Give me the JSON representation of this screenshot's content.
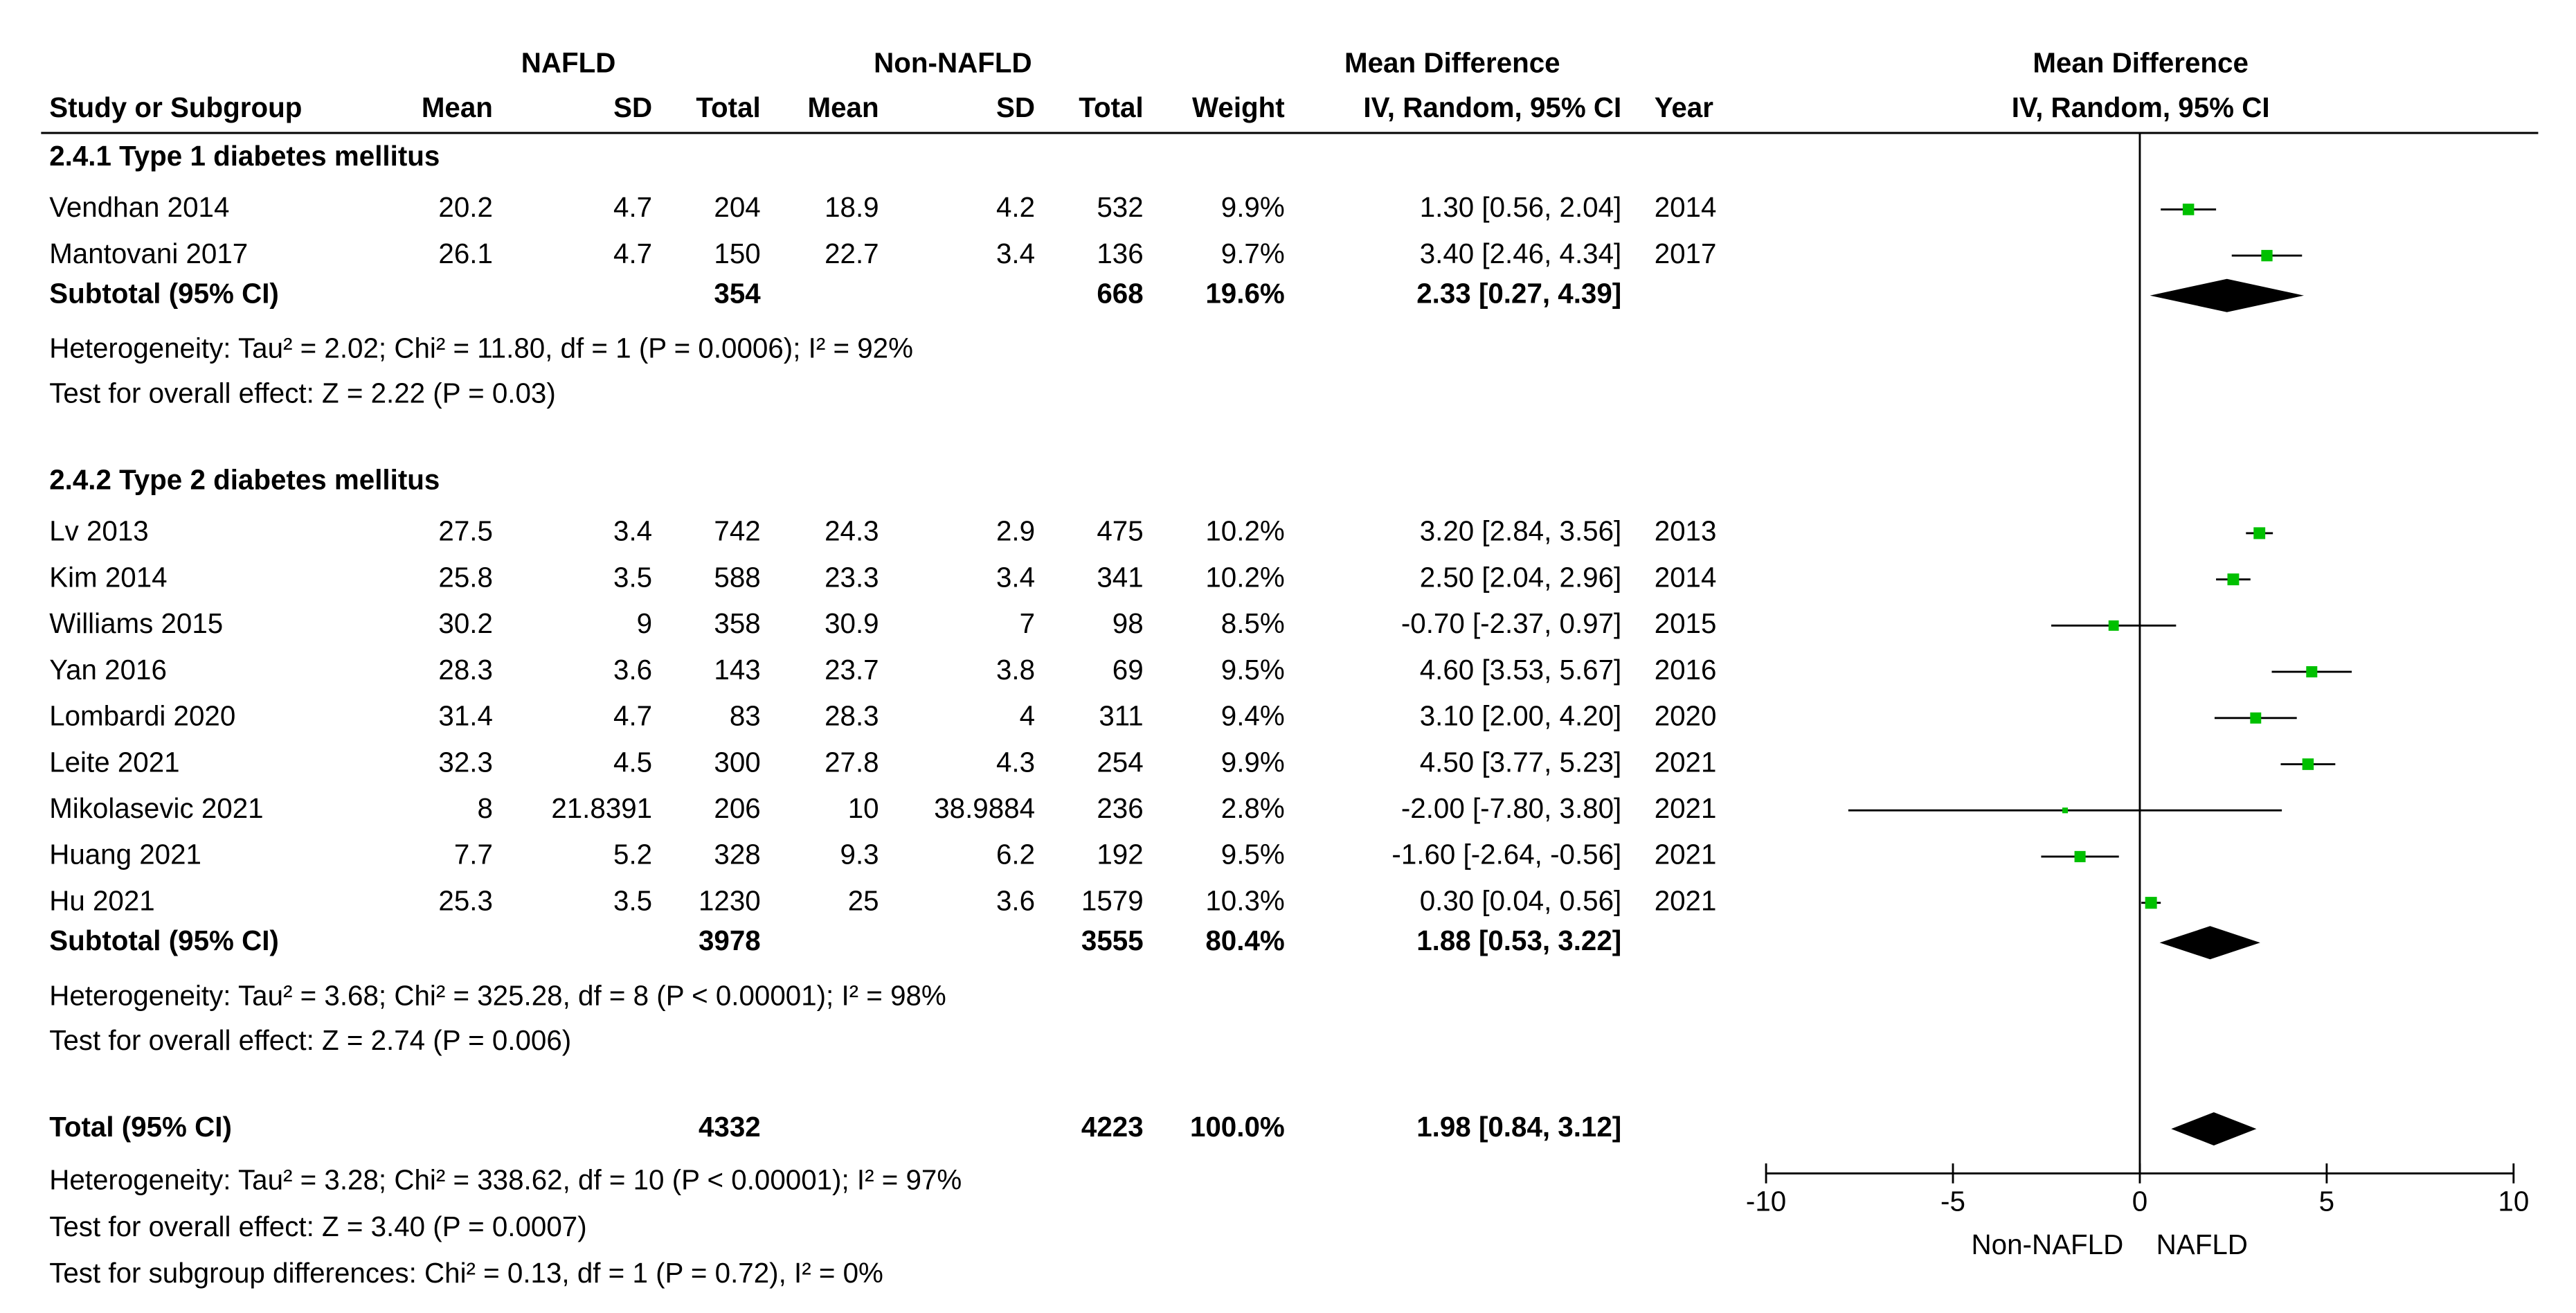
{
  "chart_data": {
    "type": "forest",
    "group_headers": [
      "NAFLD",
      "Non-NAFLD",
      "Mean Difference",
      "Mean Difference"
    ],
    "columns": [
      "Study or Subgroup",
      "Mean",
      "SD",
      "Total",
      "Mean",
      "SD",
      "Total",
      "Weight",
      "IV, Random, 95% CI",
      "Year",
      "IV, Random, 95% CI"
    ],
    "subgroups": [
      {
        "title": "2.4.1 Type 1 diabetes mellitus",
        "studies": [
          {
            "name": "Vendhan 2014",
            "mean1": 20.2,
            "sd1": 4.7,
            "n1": 204,
            "mean2": 18.9,
            "sd2": 4.2,
            "n2": 532,
            "weight": {
              "value": 9.9,
              "label": "9.9%"
            },
            "md": {
              "value": 1.3,
              "lower": 0.56,
              "upper": 2.04,
              "label": "1.30 [0.56, 2.04]"
            },
            "year": 2014
          },
          {
            "name": "Mantovani 2017",
            "mean1": 26.1,
            "sd1": 4.7,
            "n1": 150,
            "mean2": 22.7,
            "sd2": 3.4,
            "n2": 136,
            "weight": {
              "value": 9.7,
              "label": "9.7%"
            },
            "md": {
              "value": 3.4,
              "lower": 2.46,
              "upper": 4.34,
              "label": "3.40 [2.46, 4.34]"
            },
            "year": 2017
          }
        ],
        "subtotal": {
          "label": "Subtotal (95% CI)",
          "n1": 354,
          "n2": 668,
          "weight": {
            "value": 19.6,
            "label": "19.6%"
          },
          "md": {
            "value": 2.33,
            "lower": 0.27,
            "upper": 4.39,
            "label": "2.33 [0.27, 4.39]"
          }
        },
        "heterogeneity": "Heterogeneity: Tau² = 2.02; Chi² = 11.80, df = 1 (P = 0.0006); I² = 92%",
        "overall_effect": "Test for overall effect: Z = 2.22 (P = 0.03)"
      },
      {
        "title": "2.4.2 Type 2 diabetes mellitus",
        "studies": [
          {
            "name": "Lv 2013",
            "mean1": 27.5,
            "sd1": 3.4,
            "n1": 742,
            "mean2": 24.3,
            "sd2": 2.9,
            "n2": 475,
            "weight": {
              "value": 10.2,
              "label": "10.2%"
            },
            "md": {
              "value": 3.2,
              "lower": 2.84,
              "upper": 3.56,
              "label": "3.20 [2.84, 3.56]"
            },
            "year": 2013
          },
          {
            "name": "Kim 2014",
            "mean1": 25.8,
            "sd1": 3.5,
            "n1": 588,
            "mean2": 23.3,
            "sd2": 3.4,
            "n2": 341,
            "weight": {
              "value": 10.2,
              "label": "10.2%"
            },
            "md": {
              "value": 2.5,
              "lower": 2.04,
              "upper": 2.96,
              "label": "2.50 [2.04, 2.96]"
            },
            "year": 2014
          },
          {
            "name": "Williams 2015",
            "mean1": 30.2,
            "sd1": 9,
            "n1": 358,
            "mean2": 30.9,
            "sd2": 7,
            "n2": 98,
            "weight": {
              "value": 8.5,
              "label": "8.5%"
            },
            "md": {
              "value": -0.7,
              "lower": -2.37,
              "upper": 0.97,
              "label": "-0.70 [-2.37, 0.97]"
            },
            "year": 2015
          },
          {
            "name": "Yan 2016",
            "mean1": 28.3,
            "sd1": 3.6,
            "n1": 143,
            "mean2": 23.7,
            "sd2": 3.8,
            "n2": 69,
            "weight": {
              "value": 9.5,
              "label": "9.5%"
            },
            "md": {
              "value": 4.6,
              "lower": 3.53,
              "upper": 5.67,
              "label": "4.60 [3.53, 5.67]"
            },
            "year": 2016
          },
          {
            "name": "Lombardi 2020",
            "mean1": 31.4,
            "sd1": 4.7,
            "n1": 83,
            "mean2": 28.3,
            "sd2": 4,
            "n2": 311,
            "weight": {
              "value": 9.4,
              "label": "9.4%"
            },
            "md": {
              "value": 3.1,
              "lower": 2.0,
              "upper": 4.2,
              "label": "3.10 [2.00, 4.20]"
            },
            "year": 2020
          },
          {
            "name": "Leite 2021",
            "mean1": 32.3,
            "sd1": 4.5,
            "n1": 300,
            "mean2": 27.8,
            "sd2": 4.3,
            "n2": 254,
            "weight": {
              "value": 9.9,
              "label": "9.9%"
            },
            "md": {
              "value": 4.5,
              "lower": 3.77,
              "upper": 5.23,
              "label": "4.50 [3.77, 5.23]"
            },
            "year": 2021
          },
          {
            "name": "Mikolasevic 2021",
            "mean1": 8,
            "sd1": 21.8391,
            "n1": 206,
            "mean2": 10,
            "sd2": 38.9884,
            "n2": 236,
            "weight": {
              "value": 2.8,
              "label": "2.8%"
            },
            "md": {
              "value": -2.0,
              "lower": -7.8,
              "upper": 3.8,
              "label": "-2.00 [-7.80, 3.80]"
            },
            "year": 2021
          },
          {
            "name": "Huang 2021",
            "mean1": 7.7,
            "sd1": 5.2,
            "n1": 328,
            "mean2": 9.3,
            "sd2": 6.2,
            "n2": 192,
            "weight": {
              "value": 9.5,
              "label": "9.5%"
            },
            "md": {
              "value": -1.6,
              "lower": -2.64,
              "upper": -0.56,
              "label": "-1.60 [-2.64, -0.56]"
            },
            "year": 2021
          },
          {
            "name": "Hu 2021",
            "mean1": 25.3,
            "sd1": 3.5,
            "n1": 1230,
            "mean2": 25,
            "sd2": 3.6,
            "n2": 1579,
            "weight": {
              "value": 10.3,
              "label": "10.3%"
            },
            "md": {
              "value": 0.3,
              "lower": 0.04,
              "upper": 0.56,
              "label": "0.30 [0.04, 0.56]"
            },
            "year": 2021
          }
        ],
        "subtotal": {
          "label": "Subtotal (95% CI)",
          "n1": 3978,
          "n2": 3555,
          "weight": {
            "value": 80.4,
            "label": "80.4%"
          },
          "md": {
            "value": 1.88,
            "lower": 0.53,
            "upper": 3.22,
            "label": "1.88 [0.53, 3.22]"
          }
        },
        "heterogeneity": "Heterogeneity: Tau² = 3.68; Chi² = 325.28, df = 8 (P < 0.00001); I² = 98%",
        "overall_effect": "Test for overall effect: Z = 2.74 (P = 0.006)"
      }
    ],
    "total": {
      "label": "Total (95% CI)",
      "n1": 4332,
      "n2": 4223,
      "weight": {
        "value": 100.0,
        "label": "100.0%"
      },
      "md": {
        "value": 1.98,
        "lower": 0.84,
        "upper": 3.12,
        "label": "1.98 [0.84, 3.12]"
      },
      "heterogeneity": "Heterogeneity: Tau² = 3.28; Chi² = 338.62, df = 10 (P < 0.00001); I² = 97%",
      "overall_effect": "Test for overall effect: Z = 3.40 (P = 0.0007)",
      "subgroup_differences": "Test for subgroup differences: Chi² = 0.13, df = 1 (P = 0.72), I² = 0%"
    },
    "xlim": [
      -10,
      10
    ],
    "xticks": [
      -10,
      -5,
      0,
      5,
      10
    ],
    "xlabel_left": "Non-NAFLD",
    "xlabel_right": "NAFLD",
    "marker_color": "#00c000",
    "diamond_color": "#000000"
  }
}
